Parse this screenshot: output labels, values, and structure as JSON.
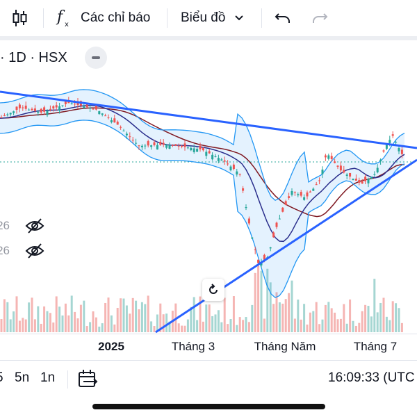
{
  "toolbar": {
    "chart_type_icon": "candlestick-icon",
    "indicators_label": "Các chỉ báo",
    "chart_menu_label": "Biểu đồ"
  },
  "symbol": {
    "header": "· 1D · HSX"
  },
  "indicators": [
    {
      "value_fragment": "26",
      "visibility": "hidden"
    },
    {
      "value_fragment": "26",
      "visibility": "hidden"
    }
  ],
  "time_axis": {
    "labels": [
      {
        "text": "2025",
        "bold": true
      },
      {
        "text": "Tháng 3",
        "bold": false
      },
      {
        "text": "Tháng Năm",
        "bold": false
      },
      {
        "text": "Tháng 7",
        "bold": false
      }
    ]
  },
  "bottom_bar": {
    "range_1": "5n",
    "range_2": "1n",
    "range_partial": "5",
    "clock": "16:09:33 (UTC"
  },
  "colors": {
    "up": "#26a69a",
    "down": "#ef5350",
    "trendline": "#2962ff",
    "bollinger": "#2196f3",
    "ma_fast": "#2a2e8c",
    "ma_slow": "#801922"
  }
}
